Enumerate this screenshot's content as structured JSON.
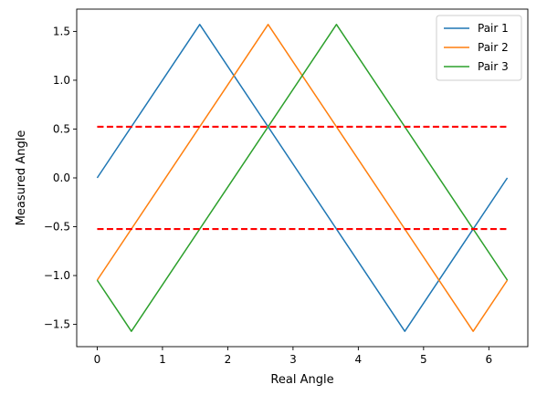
{
  "chart_data": {
    "type": "line",
    "xlabel": "Real Angle",
    "ylabel": "Measured Angle",
    "xlim": [
      -0.314,
      6.597
    ],
    "ylim": [
      -1.728,
      1.728
    ],
    "xticks": [
      0,
      1,
      2,
      3,
      4,
      5,
      6
    ],
    "xtick_labels": [
      "0",
      "1",
      "2",
      "3",
      "4",
      "5",
      "6"
    ],
    "yticks": [
      -1.5,
      -1.0,
      -0.5,
      0.0,
      0.5,
      1.0,
      1.5
    ],
    "ytick_labels": [
      "−1.5",
      "−1.0",
      "−0.5",
      "0.0",
      "0.5",
      "1.0",
      "1.5"
    ],
    "grid": false,
    "legend_position": "top-right",
    "series": [
      {
        "name": "Pair 1",
        "color": "#1f77b4",
        "x": [
          0,
          1.5708,
          4.7124,
          6.2832
        ],
        "y": [
          0,
          1.5708,
          -1.5708,
          0
        ]
      },
      {
        "name": "Pair 2",
        "color": "#ff7f0e",
        "x": [
          0,
          2.618,
          5.7596,
          6.2832
        ],
        "y": [
          -1.0472,
          1.5708,
          -1.5708,
          -1.0472
        ]
      },
      {
        "name": "Pair 3",
        "color": "#2ca02c",
        "x": [
          0,
          0.5236,
          3.6652,
          6.2832
        ],
        "y": [
          -1.0472,
          -1.5708,
          1.5708,
          -1.0472
        ]
      }
    ],
    "reference_lines": [
      {
        "y": 0.5236,
        "x": [
          0,
          6.2832
        ],
        "color": "#ff0000",
        "style": "dashed"
      },
      {
        "y": -0.5236,
        "x": [
          0,
          6.2832
        ],
        "color": "#ff0000",
        "style": "dashed"
      }
    ]
  }
}
